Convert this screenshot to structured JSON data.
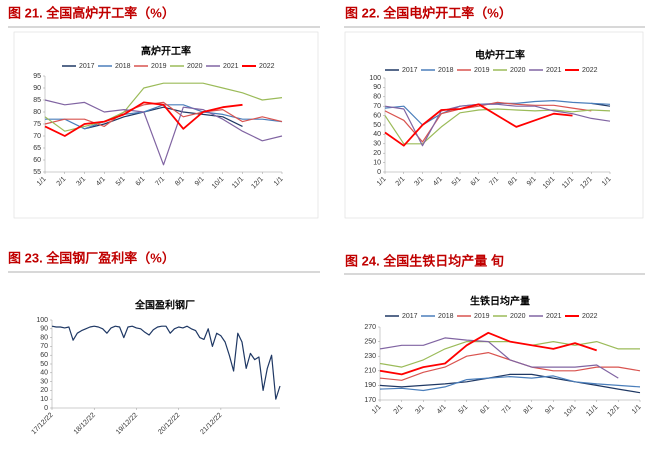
{
  "chart_data": [
    {
      "type": "line",
      "caption": "图 21. 全国高炉开工率（%）",
      "title": "高炉开工率",
      "categories": [
        "1/1",
        "2/1",
        "3/1",
        "4/1",
        "5/1",
        "6/1",
        "7/1",
        "8/1",
        "9/1",
        "10/1",
        "11/1",
        "12/1",
        "1/1"
      ],
      "ylim": [
        55,
        95
      ],
      "yticks": [
        55,
        60,
        65,
        70,
        75,
        80,
        85,
        90,
        95
      ],
      "series": [
        {
          "name": "2017",
          "color": "#1f3864",
          "values": [
            null,
            null,
            73,
            75,
            78,
            80,
            82,
            80,
            79,
            78,
            74,
            null,
            null
          ]
        },
        {
          "name": "2018",
          "color": "#4a7ebb",
          "values": [
            77,
            77,
            73,
            76,
            79,
            80,
            83,
            83,
            80,
            79,
            77,
            77,
            76
          ]
        },
        {
          "name": "2019",
          "color": "#d9534f",
          "values": [
            75,
            77,
            77,
            74,
            80,
            83,
            84,
            78,
            80,
            81,
            76,
            78,
            76
          ]
        },
        {
          "name": "2020",
          "color": "#9bbb59",
          "values": [
            78,
            72,
            74,
            76,
            80,
            90,
            92,
            92,
            92,
            90,
            88,
            85,
            86
          ]
        },
        {
          "name": "2021",
          "color": "#8064a2",
          "values": [
            85,
            83,
            84,
            80,
            81,
            80,
            58,
            82,
            81,
            77,
            72,
            68,
            70
          ]
        },
        {
          "name": "2022",
          "color": "#ff0000",
          "values": [
            74,
            70,
            75,
            76,
            79,
            84,
            83,
            73,
            80,
            82,
            83,
            null,
            null
          ]
        }
      ]
    },
    {
      "type": "line",
      "caption": "图 22. 全国电炉开工率（%）",
      "title": "电炉开工率",
      "categories": [
        "1/1",
        "2/1",
        "3/1",
        "4/1",
        "5/1",
        "6/1",
        "7/1",
        "8/1",
        "9/1",
        "10/1",
        "11/1",
        "12/1",
        "1/1"
      ],
      "ylim": [
        0,
        100
      ],
      "yticks": [
        0,
        10,
        20,
        30,
        40,
        50,
        60,
        70,
        80,
        90,
        100
      ],
      "series": [
        {
          "name": "2017",
          "color": "#1f3864",
          "values": [
            null,
            null,
            null,
            null,
            null,
            null,
            null,
            null,
            null,
            null,
            null,
            73,
            70
          ]
        },
        {
          "name": "2018",
          "color": "#4a7ebb",
          "values": [
            68,
            70,
            50,
            62,
            70,
            72,
            73,
            73,
            75,
            76,
            74,
            73,
            72
          ]
        },
        {
          "name": "2019",
          "color": "#d9534f",
          "values": [
            65,
            55,
            32,
            62,
            67,
            70,
            74,
            72,
            71,
            71,
            68,
            65,
            null
          ]
        },
        {
          "name": "2020",
          "color": "#9bbb59",
          "values": [
            60,
            30,
            30,
            48,
            63,
            66,
            67,
            66,
            65,
            66,
            64,
            66,
            65
          ]
        },
        {
          "name": "2021",
          "color": "#8064a2",
          "values": [
            70,
            67,
            28,
            65,
            70,
            72,
            72,
            70,
            70,
            65,
            62,
            57,
            54
          ]
        },
        {
          "name": "2022",
          "color": "#ff0000",
          "values": [
            42,
            28,
            50,
            66,
            67,
            72,
            60,
            48,
            55,
            62,
            60,
            null,
            null
          ]
        }
      ]
    },
    {
      "type": "line",
      "caption": "图 23. 全国钢厂盈利率（%）",
      "title": "全国盈利钢厂",
      "categories": [
        "17/12/22",
        null,
        null,
        null,
        null,
        null,
        null,
        null,
        null,
        null,
        "18/12/22",
        null,
        null,
        null,
        null,
        null,
        null,
        null,
        null,
        null,
        "19/12/22",
        null,
        null,
        null,
        null,
        null,
        null,
        null,
        null,
        null,
        "20/12/22",
        null,
        null,
        null,
        null,
        null,
        null,
        null,
        null,
        null,
        "21/12/22",
        null,
        null,
        null,
        null,
        null,
        null,
        null,
        null,
        null,
        null,
        null,
        null,
        null,
        null
      ],
      "ylim": [
        0,
        100
      ],
      "yticks": [
        0,
        10,
        20,
        30,
        40,
        50,
        60,
        70,
        80,
        90,
        100
      ],
      "series": [
        {
          "color": "#1f3864",
          "values": [
            93,
            92,
            92,
            91,
            92,
            77,
            85,
            88,
            90,
            92,
            93,
            92,
            90,
            85,
            91,
            93,
            92,
            80,
            92,
            93,
            91,
            90,
            86,
            83,
            89,
            92,
            93,
            93,
            85,
            90,
            92,
            91,
            93,
            90,
            88,
            80,
            78,
            90,
            70,
            85,
            82,
            75,
            60,
            42,
            85,
            75,
            45,
            62,
            55,
            58,
            20,
            45,
            60,
            10,
            25
          ]
        }
      ]
    },
    {
      "type": "line",
      "caption": "图 24. 全国生铁日均产量 旬",
      "title": "生铁日均产量",
      "categories": [
        "1/1",
        "2/1",
        "3/1",
        "4/1",
        "5/1",
        "6/1",
        "7/1",
        "8/1",
        "9/1",
        "10/1",
        "11/1",
        "12/1",
        "1/1"
      ],
      "ylim": [
        170,
        270
      ],
      "yticks": [
        170,
        190,
        210,
        230,
        250,
        270
      ],
      "series": [
        {
          "name": "2017",
          "color": "#1f3864",
          "values": [
            190,
            188,
            190,
            192,
            195,
            200,
            205,
            205,
            200,
            195,
            190,
            185,
            180
          ]
        },
        {
          "name": "2018",
          "color": "#4a7ebb",
          "values": [
            185,
            186,
            183,
            188,
            198,
            200,
            202,
            200,
            203,
            195,
            192,
            190,
            188
          ]
        },
        {
          "name": "2019",
          "color": "#d9534f",
          "values": [
            200,
            197,
            208,
            215,
            230,
            235,
            225,
            215,
            210,
            210,
            215,
            215,
            210
          ]
        },
        {
          "name": "2020",
          "color": "#9bbb59",
          "values": [
            220,
            215,
            225,
            240,
            250,
            250,
            250,
            245,
            250,
            245,
            250,
            240,
            240
          ]
        },
        {
          "name": "2021",
          "color": "#8064a2",
          "values": [
            240,
            245,
            245,
            255,
            252,
            250,
            225,
            215,
            215,
            215,
            218,
            200,
            null
          ]
        },
        {
          "name": "2022",
          "color": "#ff0000",
          "values": [
            210,
            205,
            215,
            220,
            245,
            262,
            250,
            245,
            240,
            248,
            238,
            null,
            null
          ]
        }
      ]
    }
  ]
}
